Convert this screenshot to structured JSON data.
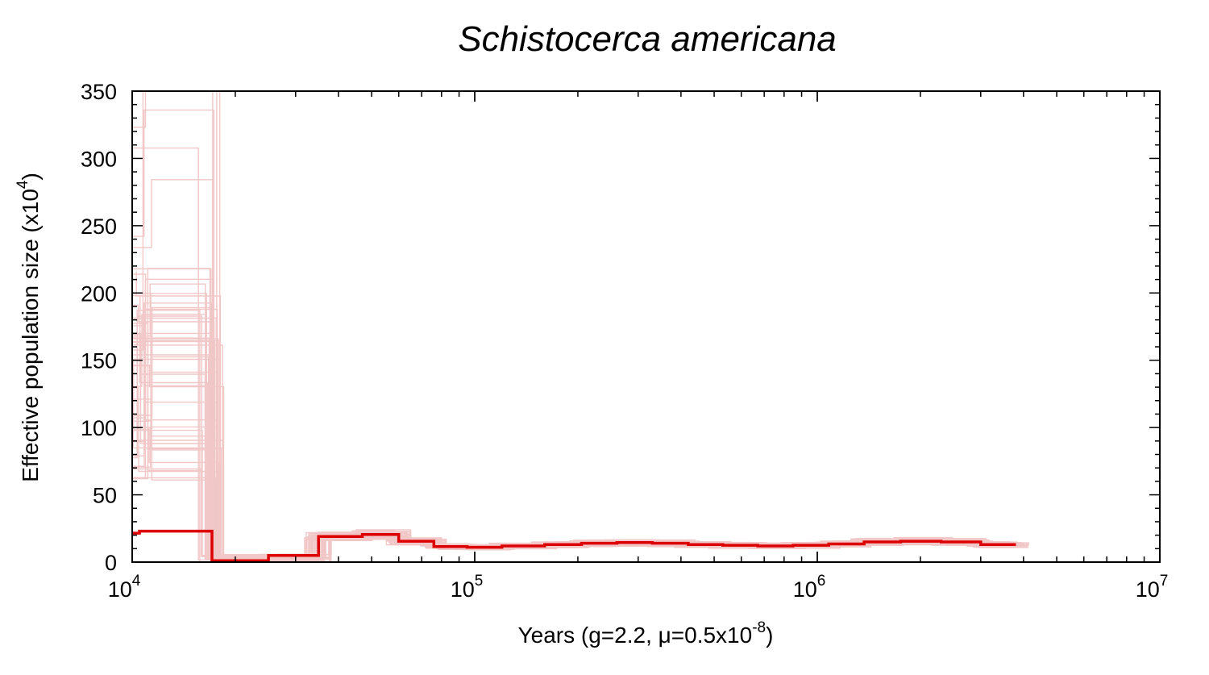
{
  "chart_data": {
    "type": "line",
    "title": "Schistocerca americana",
    "xlabel": {
      "prefix": "Years (g=2.2, ",
      "mu": "μ",
      "middle": "=0.5x10",
      "exponent": "-8",
      "suffix": ")"
    },
    "ylabel": {
      "prefix": "Effective population size (x10",
      "exponent": "4",
      "suffix": ")"
    },
    "x_scale": "log",
    "xlim": [
      10000,
      10000000
    ],
    "ylim": [
      0,
      350
    ],
    "x_ticks": [
      {
        "base": "10",
        "exp": "4",
        "value": 10000
      },
      {
        "base": "10",
        "exp": "5",
        "value": 100000
      },
      {
        "base": "10",
        "exp": "6",
        "value": 1000000
      },
      {
        "base": "10",
        "exp": "7",
        "value": 10000000
      }
    ],
    "y_ticks": [
      "0",
      "50",
      "100",
      "150",
      "200",
      "250",
      "300",
      "350"
    ],
    "grid": false,
    "colors": {
      "main": "#dd0000",
      "bootstrap": "#f1c7c7"
    },
    "series": [
      {
        "role": "main",
        "step": true,
        "x": [
          9500,
          10500,
          17100,
          25000,
          35000,
          47000,
          60000,
          76000,
          95000,
          120000,
          160000,
          205000,
          260000,
          330000,
          420000,
          530000,
          670000,
          850000,
          1080000,
          1370000,
          1750000,
          2300000,
          3000000,
          3800000
        ],
        "y": [
          21.5,
          23,
          1,
          5,
          19,
          20.5,
          15.5,
          11.5,
          11,
          12,
          13,
          14,
          14.5,
          14,
          13,
          12.5,
          12,
          12.5,
          13.5,
          15,
          15.5,
          15,
          13,
          13
        ]
      }
    ]
  }
}
